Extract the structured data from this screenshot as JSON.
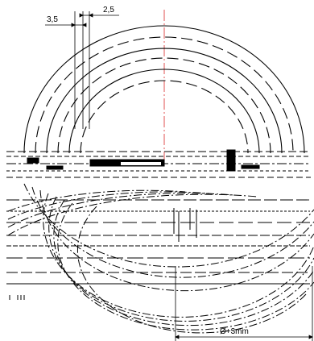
{
  "dimensions": {
    "left": "3,5",
    "right": "2,5",
    "bottom": "Ø+3mm"
  },
  "colors": {
    "line": "#000000",
    "centerline": "#e05050",
    "background": "#ffffff"
  }
}
